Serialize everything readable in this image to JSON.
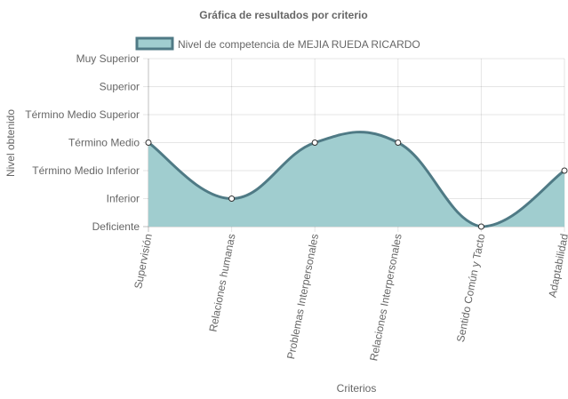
{
  "chart_data": {
    "type": "area",
    "title": "Gráfica de resultados por criterio",
    "xlabel": "Criterios",
    "ylabel": "Nivel obtenido",
    "y_levels": [
      "Deficiente",
      "Inferior",
      "Término Medio Inferior",
      "Término Medio",
      "Término Medio Superior",
      "Superior",
      "Muy Superior"
    ],
    "categories": [
      "Supervisión",
      "Relaciones humanas",
      "Problemas Interpersonales",
      "Relaciones Interpersonales",
      "Sentido Común y Tacto",
      "Adaptabilidad"
    ],
    "series": [
      {
        "name": "Nivel de competencia de MEJIA RUEDA RICARDO",
        "values": [
          3,
          1,
          3,
          3,
          0,
          2
        ],
        "value_labels": [
          "Término Medio",
          "Inferior",
          "Término Medio",
          "Término Medio",
          "Deficiente",
          "Término Medio Inferior"
        ]
      }
    ],
    "ylim": [
      0,
      6
    ],
    "grid": true,
    "legend_position": "top",
    "colors": {
      "fill": "#a0cdcf",
      "line": "#4f7a85",
      "point_fill": "#ffffff",
      "point_stroke": "#333333"
    }
  }
}
